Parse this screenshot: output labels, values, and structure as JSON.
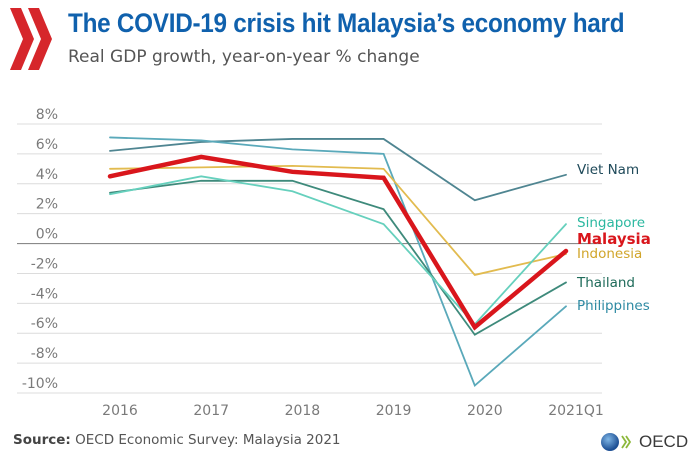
{
  "header": {
    "title": "The COVID-19 crisis hit Malaysia’s economy hard",
    "subtitle": "Real GDP growth, year-on-year % change",
    "logo_icon": "double-chevron-right-icon"
  },
  "footer": {
    "source_label": "Source:",
    "source_text": "OECD Economic Survey: Malaysia 2021",
    "brand": "OECD",
    "brand_icon": "globe-icon"
  },
  "chart_data": {
    "type": "line",
    "title": "The COVID-19 crisis hit Malaysia’s economy hard",
    "subtitle": "Real GDP growth, year-on-year % change",
    "xlabel": "",
    "ylabel": "",
    "categories": [
      "2016",
      "2017",
      "2018",
      "2019",
      "2020",
      "2021Q1"
    ],
    "ylim": [
      -10,
      8
    ],
    "yticks": [
      8,
      6,
      4,
      2,
      0,
      -2,
      -4,
      -6,
      -8,
      -10
    ],
    "ytick_labels": [
      "8%",
      "6%",
      "4%",
      "2%",
      "0%",
      "-2%",
      "-4%",
      "-6%",
      "-8%",
      "-10%"
    ],
    "grid": true,
    "legend": "right (direct labels)",
    "series": [
      {
        "name": "Viet Nam",
        "color": "#4f8591",
        "values": [
          6.2,
          6.8,
          7.0,
          7.0,
          2.9,
          4.6
        ]
      },
      {
        "name": "Philippines",
        "color": "#5aa9ba",
        "values": [
          7.1,
          6.9,
          6.3,
          6.0,
          -9.5,
          -4.2
        ]
      },
      {
        "name": "Indonesia",
        "color": "#e2bb4f",
        "values": [
          5.0,
          5.1,
          5.2,
          5.0,
          -2.1,
          -0.7
        ]
      },
      {
        "name": "Thailand",
        "color": "#3e8a7b",
        "values": [
          3.4,
          4.2,
          4.2,
          2.3,
          -6.1,
          -2.6
        ]
      },
      {
        "name": "Singapore",
        "color": "#66d0bd",
        "values": [
          3.3,
          4.5,
          3.5,
          1.3,
          -5.4,
          1.3
        ]
      },
      {
        "name": "Malaysia",
        "color": "#d9161c",
        "values": [
          4.5,
          5.8,
          4.8,
          4.4,
          -5.6,
          -0.5
        ]
      }
    ]
  }
}
